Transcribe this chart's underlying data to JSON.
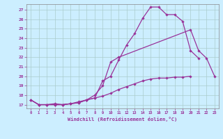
{
  "curve1_x": [
    0,
    1,
    2,
    3,
    4,
    5,
    6,
    7,
    8,
    9,
    10,
    11,
    12,
    13,
    14,
    15,
    16,
    17,
    18,
    19,
    20,
    21
  ],
  "curve1_y": [
    17.5,
    17.0,
    17.0,
    17.0,
    17.0,
    17.1,
    17.2,
    17.5,
    17.7,
    19.5,
    20.0,
    21.7,
    23.3,
    24.5,
    26.1,
    27.3,
    27.3,
    26.5,
    26.5,
    25.8,
    22.7,
    21.9
  ],
  "curve2_x": [
    0,
    1,
    2,
    3,
    4,
    5,
    6,
    7,
    8,
    9,
    10,
    11,
    20,
    21,
    22,
    23
  ],
  "curve2_y": [
    17.5,
    17.0,
    17.0,
    17.0,
    17.0,
    17.1,
    17.2,
    17.5,
    18.0,
    19.0,
    21.5,
    22.0,
    24.9,
    22.7,
    21.9,
    20.0
  ],
  "curve3_x": [
    0,
    1,
    2,
    3,
    4,
    5,
    6,
    7,
    8,
    9,
    10,
    11,
    12,
    13,
    14,
    15,
    16,
    17,
    18,
    19,
    20
  ],
  "curve3_y": [
    17.5,
    17.0,
    17.0,
    17.1,
    17.0,
    17.1,
    17.3,
    17.5,
    17.7,
    17.9,
    18.2,
    18.6,
    18.9,
    19.2,
    19.5,
    19.7,
    19.8,
    19.8,
    19.9,
    19.9,
    20.0
  ],
  "line_color": "#993399",
  "bg_color": "#cceeff",
  "grid_color": "#aacccc",
  "xlabel": "Windchill (Refroidissement éolien,°C)",
  "xlim": [
    -0.5,
    23.5
  ],
  "ylim": [
    16.6,
    27.6
  ],
  "yticks": [
    17,
    18,
    19,
    20,
    21,
    22,
    23,
    24,
    25,
    26,
    27
  ],
  "xticks": [
    0,
    1,
    2,
    3,
    4,
    5,
    6,
    7,
    8,
    9,
    10,
    11,
    12,
    13,
    14,
    15,
    16,
    17,
    18,
    19,
    20,
    21,
    22,
    23
  ]
}
